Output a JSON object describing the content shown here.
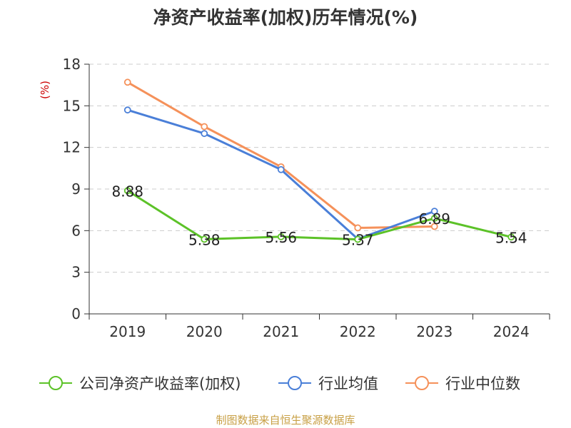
{
  "chart_data": {
    "type": "line",
    "title": "净资产收益率(加权)历年情况(%)",
    "ylabel": "(%)",
    "xlabel": "",
    "categories": [
      "2019",
      "2020",
      "2021",
      "2022",
      "2023",
      "2024"
    ],
    "ylim": [
      0,
      18
    ],
    "yticks": [
      0,
      3,
      6,
      9,
      12,
      15,
      18
    ],
    "grid": "horizontal dashed",
    "legend_position": "bottom",
    "series": [
      {
        "name": "公司净资产收益率(加权)",
        "color": "#5cc228",
        "values": [
          8.88,
          5.38,
          5.56,
          5.37,
          6.89,
          5.54
        ],
        "labels": [
          "8.88",
          "5.38",
          "5.56",
          "5.37",
          "6.89",
          "5.54"
        ]
      },
      {
        "name": "行业均值",
        "color": "#4a7fd8",
        "values": [
          14.7,
          13.0,
          10.4,
          5.4,
          7.4,
          null
        ]
      },
      {
        "name": "行业中位数",
        "color": "#f5915a",
        "values": [
          16.7,
          13.5,
          10.6,
          6.2,
          6.3,
          null
        ]
      }
    ],
    "source": "制图数据来自恒生聚源数据库"
  }
}
